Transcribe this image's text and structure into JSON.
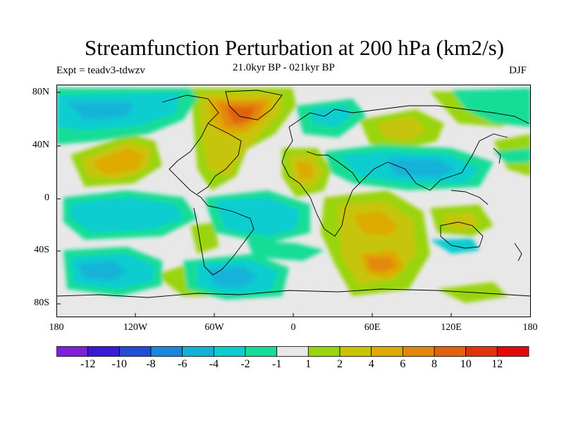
{
  "title": "Streamfunction Perturbation at 200 hPa (km2/s)",
  "left_subtitle": "Expt = teadv3-tdwzv",
  "center_subtitle": "21.0kyr BP - 021kyr BP",
  "right_subtitle": "DJF",
  "lat_labels": [
    "80N",
    "40N",
    "0",
    "40S",
    "80S"
  ],
  "lon_labels": [
    "180",
    "120W",
    "60W",
    "0",
    "60E",
    "120E",
    "180"
  ],
  "colorbar": {
    "labels": [
      "-12",
      "-10",
      "-8",
      "-6",
      "-4",
      "-2",
      "-1",
      "1",
      "2",
      "4",
      "6",
      "8",
      "10",
      "12"
    ],
    "colors": [
      "#7f1fd9",
      "#3b1ad6",
      "#1f4fd6",
      "#1a86dd",
      "#12b2d8",
      "#0bcdd0",
      "#15dd95",
      "#e8e8e8",
      "#9ad40c",
      "#c7c408",
      "#deaa06",
      "#e3870a",
      "#e0620a",
      "#e0330a",
      "#e00a0a"
    ]
  },
  "map": {
    "background_color": "#e8e8e8",
    "coastline_color": "#000000"
  }
}
